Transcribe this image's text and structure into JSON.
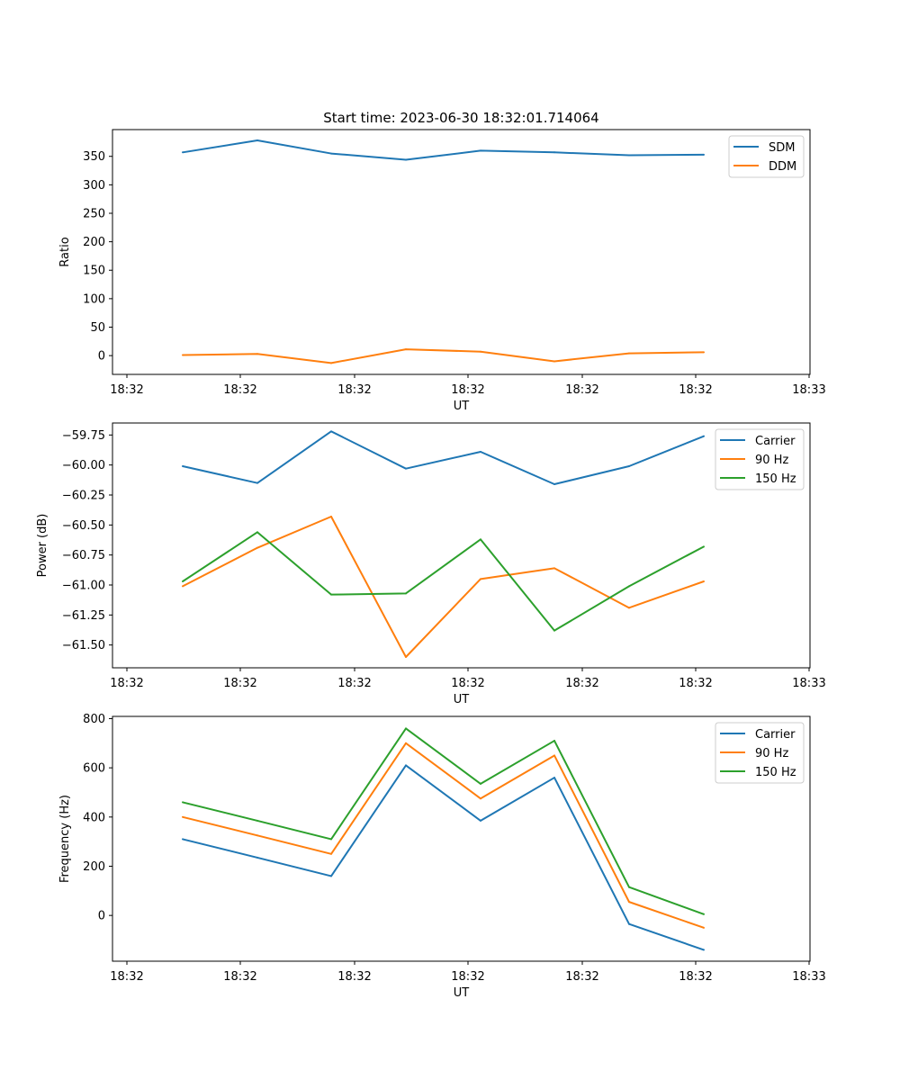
{
  "figure_title": "Start time: 2023-06-30 18:32:01.714064",
  "chart_data": [
    {
      "type": "line",
      "title": "Start time: 2023-06-30 18:32:01.714064",
      "xlabel": "UT",
      "ylabel": "Ratio",
      "x_ticklabels": [
        "18:32",
        "18:32",
        "18:32",
        "18:32",
        "18:32",
        "18:32",
        "18:32"
      ],
      "x_last_ticklabel": "18:33",
      "y_ticks": [
        0,
        50,
        100,
        150,
        200,
        250,
        300,
        350
      ],
      "ylim": [
        -33,
        397
      ],
      "legend_position": "top-right",
      "series": [
        {
          "name": "SDM",
          "color": "#1f77b4",
          "values": [
            357,
            378,
            355,
            344,
            360,
            357,
            352,
            353
          ]
        },
        {
          "name": "DDM",
          "color": "#ff7f0e",
          "values": [
            1,
            3,
            -13,
            11,
            7,
            -10,
            4,
            6
          ]
        }
      ]
    },
    {
      "type": "line",
      "title": "",
      "xlabel": "UT",
      "ylabel": "Power (dB)",
      "x_ticklabels": [
        "18:32",
        "18:32",
        "18:32",
        "18:32",
        "18:32",
        "18:32",
        "18:32"
      ],
      "x_last_ticklabel": "18:33",
      "y_ticks": [
        -61.5,
        -61.25,
        -61.0,
        -60.75,
        -60.5,
        -60.25,
        -60.0,
        -59.75
      ],
      "y_ticklabels": [
        "−61.50",
        "−61.25",
        "−61.00",
        "−60.75",
        "−60.50",
        "−60.25",
        "−60.00",
        "−59.75"
      ],
      "ylim": [
        -61.69,
        -59.65
      ],
      "legend_position": "top-right",
      "series": [
        {
          "name": "Carrier",
          "color": "#1f77b4",
          "values": [
            -60.01,
            -60.15,
            -59.72,
            -60.03,
            -59.89,
            -60.16,
            -60.01,
            -59.76
          ]
        },
        {
          "name": "90 Hz",
          "color": "#ff7f0e",
          "values": [
            -61.01,
            -60.69,
            -60.43,
            -61.6,
            -60.95,
            -60.86,
            -61.19,
            -60.97
          ]
        },
        {
          "name": "150 Hz",
          "color": "#2ca02c",
          "values": [
            -60.97,
            -60.56,
            -61.08,
            -61.07,
            -60.62,
            -61.38,
            -61.01,
            -60.68
          ]
        }
      ]
    },
    {
      "type": "line",
      "title": "",
      "xlabel": "UT",
      "ylabel": "Frequency (Hz)",
      "x_ticklabels": [
        "18:32",
        "18:32",
        "18:32",
        "18:32",
        "18:32",
        "18:32",
        "18:32"
      ],
      "x_last_ticklabel": "18:33",
      "y_ticks": [
        0,
        200,
        400,
        600,
        800
      ],
      "ylim": [
        -186,
        809
      ],
      "legend_position": "top-right",
      "series": [
        {
          "name": "Carrier",
          "color": "#1f77b4",
          "values": [
            310,
            235,
            160,
            610,
            385,
            560,
            -35,
            -140
          ]
        },
        {
          "name": "90 Hz",
          "color": "#ff7f0e",
          "values": [
            400,
            325,
            250,
            700,
            475,
            650,
            55,
            -50
          ]
        },
        {
          "name": "150 Hz",
          "color": "#2ca02c",
          "values": [
            460,
            385,
            310,
            760,
            535,
            710,
            115,
            5
          ]
        }
      ]
    }
  ]
}
